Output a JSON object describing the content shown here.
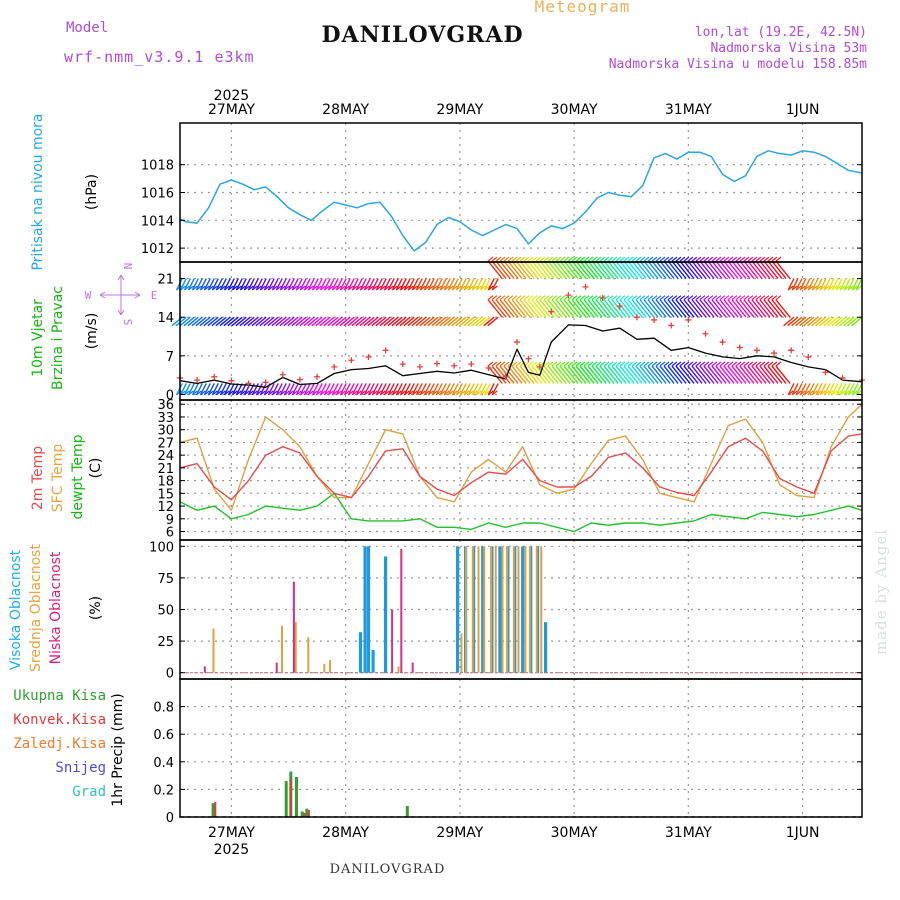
{
  "header": {
    "title": "DANILOVGRAD",
    "subtitle": "Meteogram",
    "model_label": "Model",
    "model_name": "wrf-nmm_v3.9.1 e3km",
    "lonlat": "lon,lat (19.2E, 42.5N)",
    "elevation": "Nadmorska Visina 53m",
    "model_elevation": "Nadmorska Visina u modelu 158.85m",
    "footer": "DANILOVGRAD",
    "credit": "made by Angel"
  },
  "colors": {
    "pressure": "#2aa6e0",
    "wind_line": "#000000",
    "gust": "#e84040",
    "temp2m": "#e84a4a",
    "sfc": "#e0a040",
    "dew": "#22c02a",
    "high_cloud": "#1e9ae0",
    "mid_cloud": "#e0a040",
    "low_cloud": "#d0308a",
    "precip_total": "#33a033",
    "precip_conv": "#e03a3a",
    "label_pressure": "#22a8e8",
    "label_wind": "#11b811",
    "label_cloud_high": "#20b0e8",
    "label_cloud_mid": "#e8a43a",
    "label_cloud_low": "#d8207a",
    "label_snow": "#4a4ae0",
    "label_grad": "#30c0c0",
    "label_freeze": "#f07a2a",
    "axis_units": "#000000",
    "compass": "#c070e0"
  },
  "chart_data": {
    "type": "meteogram",
    "x_axis": {
      "year": "2025",
      "start_day": 26.55,
      "end_day": 32.52,
      "ticks": [
        {
          "label": "27MAY",
          "day": 27
        },
        {
          "label": "28MAY",
          "day": 28
        },
        {
          "label": "29MAY",
          "day": 29
        },
        {
          "label": "30MAY",
          "day": 30
        },
        {
          "label": "31MAY",
          "day": 31
        },
        {
          "label": "1JUN",
          "day": 32
        }
      ]
    },
    "panels": {
      "pressure": {
        "labels": [
          "Pritisak na nivou mora",
          "(hPa)"
        ],
        "ylim": [
          1011,
          1021
        ],
        "yticks": [
          1012,
          1014,
          1016,
          1018
        ],
        "series": {
          "x": [
            26.55,
            26.6,
            26.7,
            26.8,
            26.9,
            27.0,
            27.1,
            27.2,
            27.3,
            27.4,
            27.5,
            27.6,
            27.7,
            27.8,
            27.9,
            28.0,
            28.1,
            28.2,
            28.3,
            28.4,
            28.5,
            28.6,
            28.7,
            28.8,
            28.9,
            29.0,
            29.1,
            29.2,
            29.3,
            29.4,
            29.5,
            29.6,
            29.7,
            29.8,
            29.9,
            30.0,
            30.1,
            30.2,
            30.3,
            30.4,
            30.5,
            30.6,
            30.7,
            30.8,
            30.9,
            31.0,
            31.1,
            31.2,
            31.3,
            31.4,
            31.5,
            31.6,
            31.7,
            31.8,
            31.9,
            32.0,
            32.1,
            32.2,
            32.3,
            32.4,
            32.52
          ],
          "values": [
            1014.1,
            1013.9,
            1013.8,
            1014.9,
            1016.6,
            1016.9,
            1016.6,
            1016.2,
            1016.4,
            1015.7,
            1014.9,
            1014.4,
            1014.0,
            1014.7,
            1015.3,
            1015.1,
            1014.9,
            1015.2,
            1015.3,
            1014.3,
            1012.9,
            1011.8,
            1012.4,
            1013.7,
            1014.2,
            1013.9,
            1013.3,
            1012.9,
            1013.3,
            1013.7,
            1013.4,
            1012.3,
            1013.1,
            1013.6,
            1013.4,
            1013.8,
            1014.6,
            1015.6,
            1016.0,
            1015.8,
            1015.7,
            1016.5,
            1018.5,
            1018.8,
            1018.4,
            1018.9,
            1018.9,
            1018.6,
            1017.3,
            1016.8,
            1017.2,
            1018.6,
            1019.0,
            1018.8,
            1018.7,
            1019.0,
            1018.9,
            1018.6,
            1018.1,
            1017.6,
            1017.4
          ]
        }
      },
      "wind": {
        "labels": [
          "10m Vjetar",
          "Brzina i Pravac",
          "(m/s)"
        ],
        "ylim": [
          -1,
          24
        ],
        "yticks": [
          0,
          7,
          14,
          21
        ],
        "compass": {
          "n": "N",
          "s": "S",
          "e": "E",
          "w": "W"
        },
        "barb_levels": [
          21,
          14,
          2
        ],
        "speed": {
          "x": [
            26.55,
            26.7,
            26.85,
            27.0,
            27.15,
            27.3,
            27.45,
            27.6,
            27.75,
            27.9,
            28.05,
            28.2,
            28.35,
            28.5,
            28.65,
            28.8,
            28.95,
            29.1,
            29.25,
            29.4,
            29.5,
            29.6,
            29.7,
            29.8,
            29.95,
            30.1,
            30.25,
            30.4,
            30.55,
            30.7,
            30.85,
            31.0,
            31.15,
            31.3,
            31.45,
            31.6,
            31.75,
            31.9,
            32.05,
            32.2,
            32.35,
            32.52
          ],
          "values": [
            2.5,
            2.0,
            2.6,
            1.9,
            1.7,
            1.3,
            3.1,
            1.8,
            2.0,
            3.8,
            4.5,
            4.7,
            5.2,
            3.4,
            3.8,
            4.2,
            3.9,
            4.4,
            3.6,
            2.8,
            8.2,
            4.0,
            3.5,
            9.5,
            12.6,
            12.5,
            11.5,
            12.0,
            10.0,
            10.2,
            8.0,
            8.5,
            7.5,
            6.8,
            6.5,
            7.0,
            6.8,
            5.8,
            5.0,
            4.5,
            2.6,
            2.3
          ]
        },
        "gust": {
          "x": [
            26.55,
            26.7,
            26.85,
            27.0,
            27.15,
            27.3,
            27.45,
            27.6,
            27.75,
            27.9,
            28.05,
            28.2,
            28.35,
            28.5,
            28.65,
            28.8,
            28.95,
            29.1,
            29.25,
            29.4,
            29.5,
            29.6,
            29.7,
            29.8,
            29.95,
            30.1,
            30.25,
            30.4,
            30.55,
            30.7,
            30.85,
            31.0,
            31.15,
            31.3,
            31.45,
            31.6,
            31.75,
            31.9,
            32.05,
            32.2,
            32.35,
            32.52
          ],
          "values": [
            3.0,
            2.6,
            3.2,
            2.5,
            2.0,
            2.2,
            3.6,
            2.7,
            3.2,
            5.0,
            6.2,
            6.8,
            8.0,
            5.5,
            5.0,
            5.6,
            5.2,
            5.5,
            4.8,
            3.2,
            9.5,
            6.5,
            5.0,
            15.0,
            18.0,
            19.5,
            17.5,
            16.0,
            14.0,
            13.5,
            12.5,
            13.5,
            11.0,
            9.5,
            8.5,
            8.0,
            7.5,
            8.0,
            6.8,
            4.0,
            3.0,
            2.6
          ]
        }
      },
      "temperature": {
        "labels": [
          "2m Temp",
          "SFC Temp",
          "dewpt Temp",
          "(C)"
        ],
        "ylim": [
          4,
          37
        ],
        "yticks": [
          6,
          9,
          12,
          15,
          18,
          21,
          24,
          27,
          30,
          33,
          36
        ],
        "temp2m": {
          "x": [
            26.55,
            26.7,
            26.85,
            27.0,
            27.15,
            27.3,
            27.45,
            27.6,
            27.75,
            27.9,
            28.05,
            28.2,
            28.35,
            28.5,
            28.65,
            28.8,
            28.95,
            29.1,
            29.25,
            29.4,
            29.55,
            29.7,
            29.85,
            30.0,
            30.15,
            30.3,
            30.45,
            30.6,
            30.75,
            30.9,
            31.05,
            31.2,
            31.35,
            31.5,
            31.65,
            31.8,
            31.95,
            32.1,
            32.25,
            32.4,
            32.52
          ],
          "values": [
            21,
            22,
            16.5,
            13.5,
            18,
            24,
            26,
            24.5,
            19,
            15,
            14,
            19,
            25,
            25.5,
            19,
            16,
            14.5,
            17.5,
            20,
            19.5,
            23,
            18,
            16.5,
            16.5,
            19,
            23.5,
            24.5,
            21,
            16.5,
            15.2,
            14.5,
            20,
            26,
            28,
            25,
            18.5,
            16.5,
            15,
            25,
            28.5,
            29
          ]
        },
        "sfc": {
          "x": [
            26.55,
            26.7,
            26.85,
            27.0,
            27.15,
            27.3,
            27.45,
            27.6,
            27.75,
            27.9,
            28.05,
            28.2,
            28.35,
            28.5,
            28.65,
            28.8,
            28.95,
            29.1,
            29.25,
            29.4,
            29.55,
            29.7,
            29.85,
            30.0,
            30.15,
            30.3,
            30.45,
            30.6,
            30.75,
            30.9,
            31.05,
            31.2,
            31.35,
            31.5,
            31.65,
            31.8,
            31.95,
            32.1,
            32.25,
            32.4,
            32.52
          ],
          "values": [
            27,
            28,
            16,
            11,
            23,
            33,
            30,
            26,
            19,
            14,
            14,
            22,
            30,
            29,
            19,
            14,
            13,
            20,
            23,
            20,
            26,
            17,
            15,
            16,
            22,
            27.5,
            28.5,
            23,
            15,
            14,
            13,
            22,
            31,
            32.5,
            27,
            17,
            14.5,
            14,
            26,
            33,
            36
          ]
        },
        "dew": {
          "x": [
            26.55,
            26.7,
            26.85,
            27.0,
            27.15,
            27.3,
            27.45,
            27.6,
            27.75,
            27.9,
            28.05,
            28.2,
            28.35,
            28.5,
            28.65,
            28.8,
            28.95,
            29.1,
            29.25,
            29.4,
            29.55,
            29.7,
            29.85,
            30.0,
            30.15,
            30.3,
            30.45,
            30.6,
            30.75,
            30.9,
            31.05,
            31.2,
            31.35,
            31.5,
            31.65,
            31.8,
            31.95,
            32.1,
            32.25,
            32.4,
            32.52
          ],
          "values": [
            13,
            11,
            12,
            9,
            10,
            12,
            11.5,
            11,
            12,
            15,
            9,
            8.5,
            8.5,
            8.5,
            9,
            7,
            7,
            6.5,
            8,
            7,
            8,
            8,
            7,
            6,
            8,
            7.5,
            8,
            8,
            7.5,
            8,
            8.5,
            10,
            9.5,
            9,
            10.5,
            10,
            9.5,
            10,
            11,
            12,
            11
          ]
        }
      },
      "clouds": {
        "labels": [
          "Visoka Oblacnost",
          "Srednja Oblacnost",
          "Niska Oblacnost",
          "(%)"
        ],
        "ylim": [
          -5,
          105
        ],
        "yticks": [
          0,
          25,
          50,
          75,
          100
        ],
        "high": {
          "x": [
            28.13,
            28.17,
            28.2,
            28.24,
            28.35,
            28.98,
            29.05,
            29.12,
            29.2,
            29.28,
            29.35,
            29.42,
            29.48,
            29.55,
            29.62,
            29.68,
            29.75
          ],
          "values": [
            32,
            100,
            100,
            18,
            92,
            100,
            100,
            100,
            100,
            100,
            100,
            100,
            100,
            100,
            100,
            100,
            40
          ]
        },
        "mid": {
          "x": [
            26.83,
            27.43,
            27.55,
            27.66,
            27.8,
            27.85,
            28.45,
            29.0,
            29.04,
            29.1,
            29.15,
            29.2,
            29.26,
            29.3,
            29.36,
            29.4,
            29.46,
            29.5,
            29.56,
            29.6,
            29.66,
            29.7
          ],
          "values": [
            35,
            37,
            40,
            28,
            7,
            10,
            5,
            31,
            100,
            100,
            100,
            100,
            100,
            100,
            100,
            100,
            100,
            100,
            100,
            100,
            100,
            100
          ]
        },
        "low": {
          "x": [
            26.78,
            27.41,
            27.56,
            28.42,
            28.5,
            28.6
          ],
          "values": [
            5,
            8,
            72,
            50,
            98,
            8
          ]
        }
      },
      "precip": {
        "labels": [
          "Ukupna Kisa",
          "Konvek.Kisa",
          "Zaledj.Kisa",
          "Snijeg",
          "Grad",
          "1hr Precip (mm)"
        ],
        "ylim": [
          0,
          1.0
        ],
        "yticks": [
          0,
          0.2,
          0.4,
          0.6,
          0.8
        ],
        "total": {
          "x": [
            26.84,
            27.48,
            27.52,
            27.57,
            27.62,
            27.66,
            28.54
          ],
          "values": [
            0.1,
            0.26,
            0.33,
            0.29,
            0.04,
            0.06,
            0.08
          ]
        },
        "convective": {
          "x": [
            26.85,
            27.51,
            27.63,
            27.67
          ],
          "values": [
            0.11,
            0.27,
            0.03,
            0.05
          ]
        }
      }
    }
  }
}
